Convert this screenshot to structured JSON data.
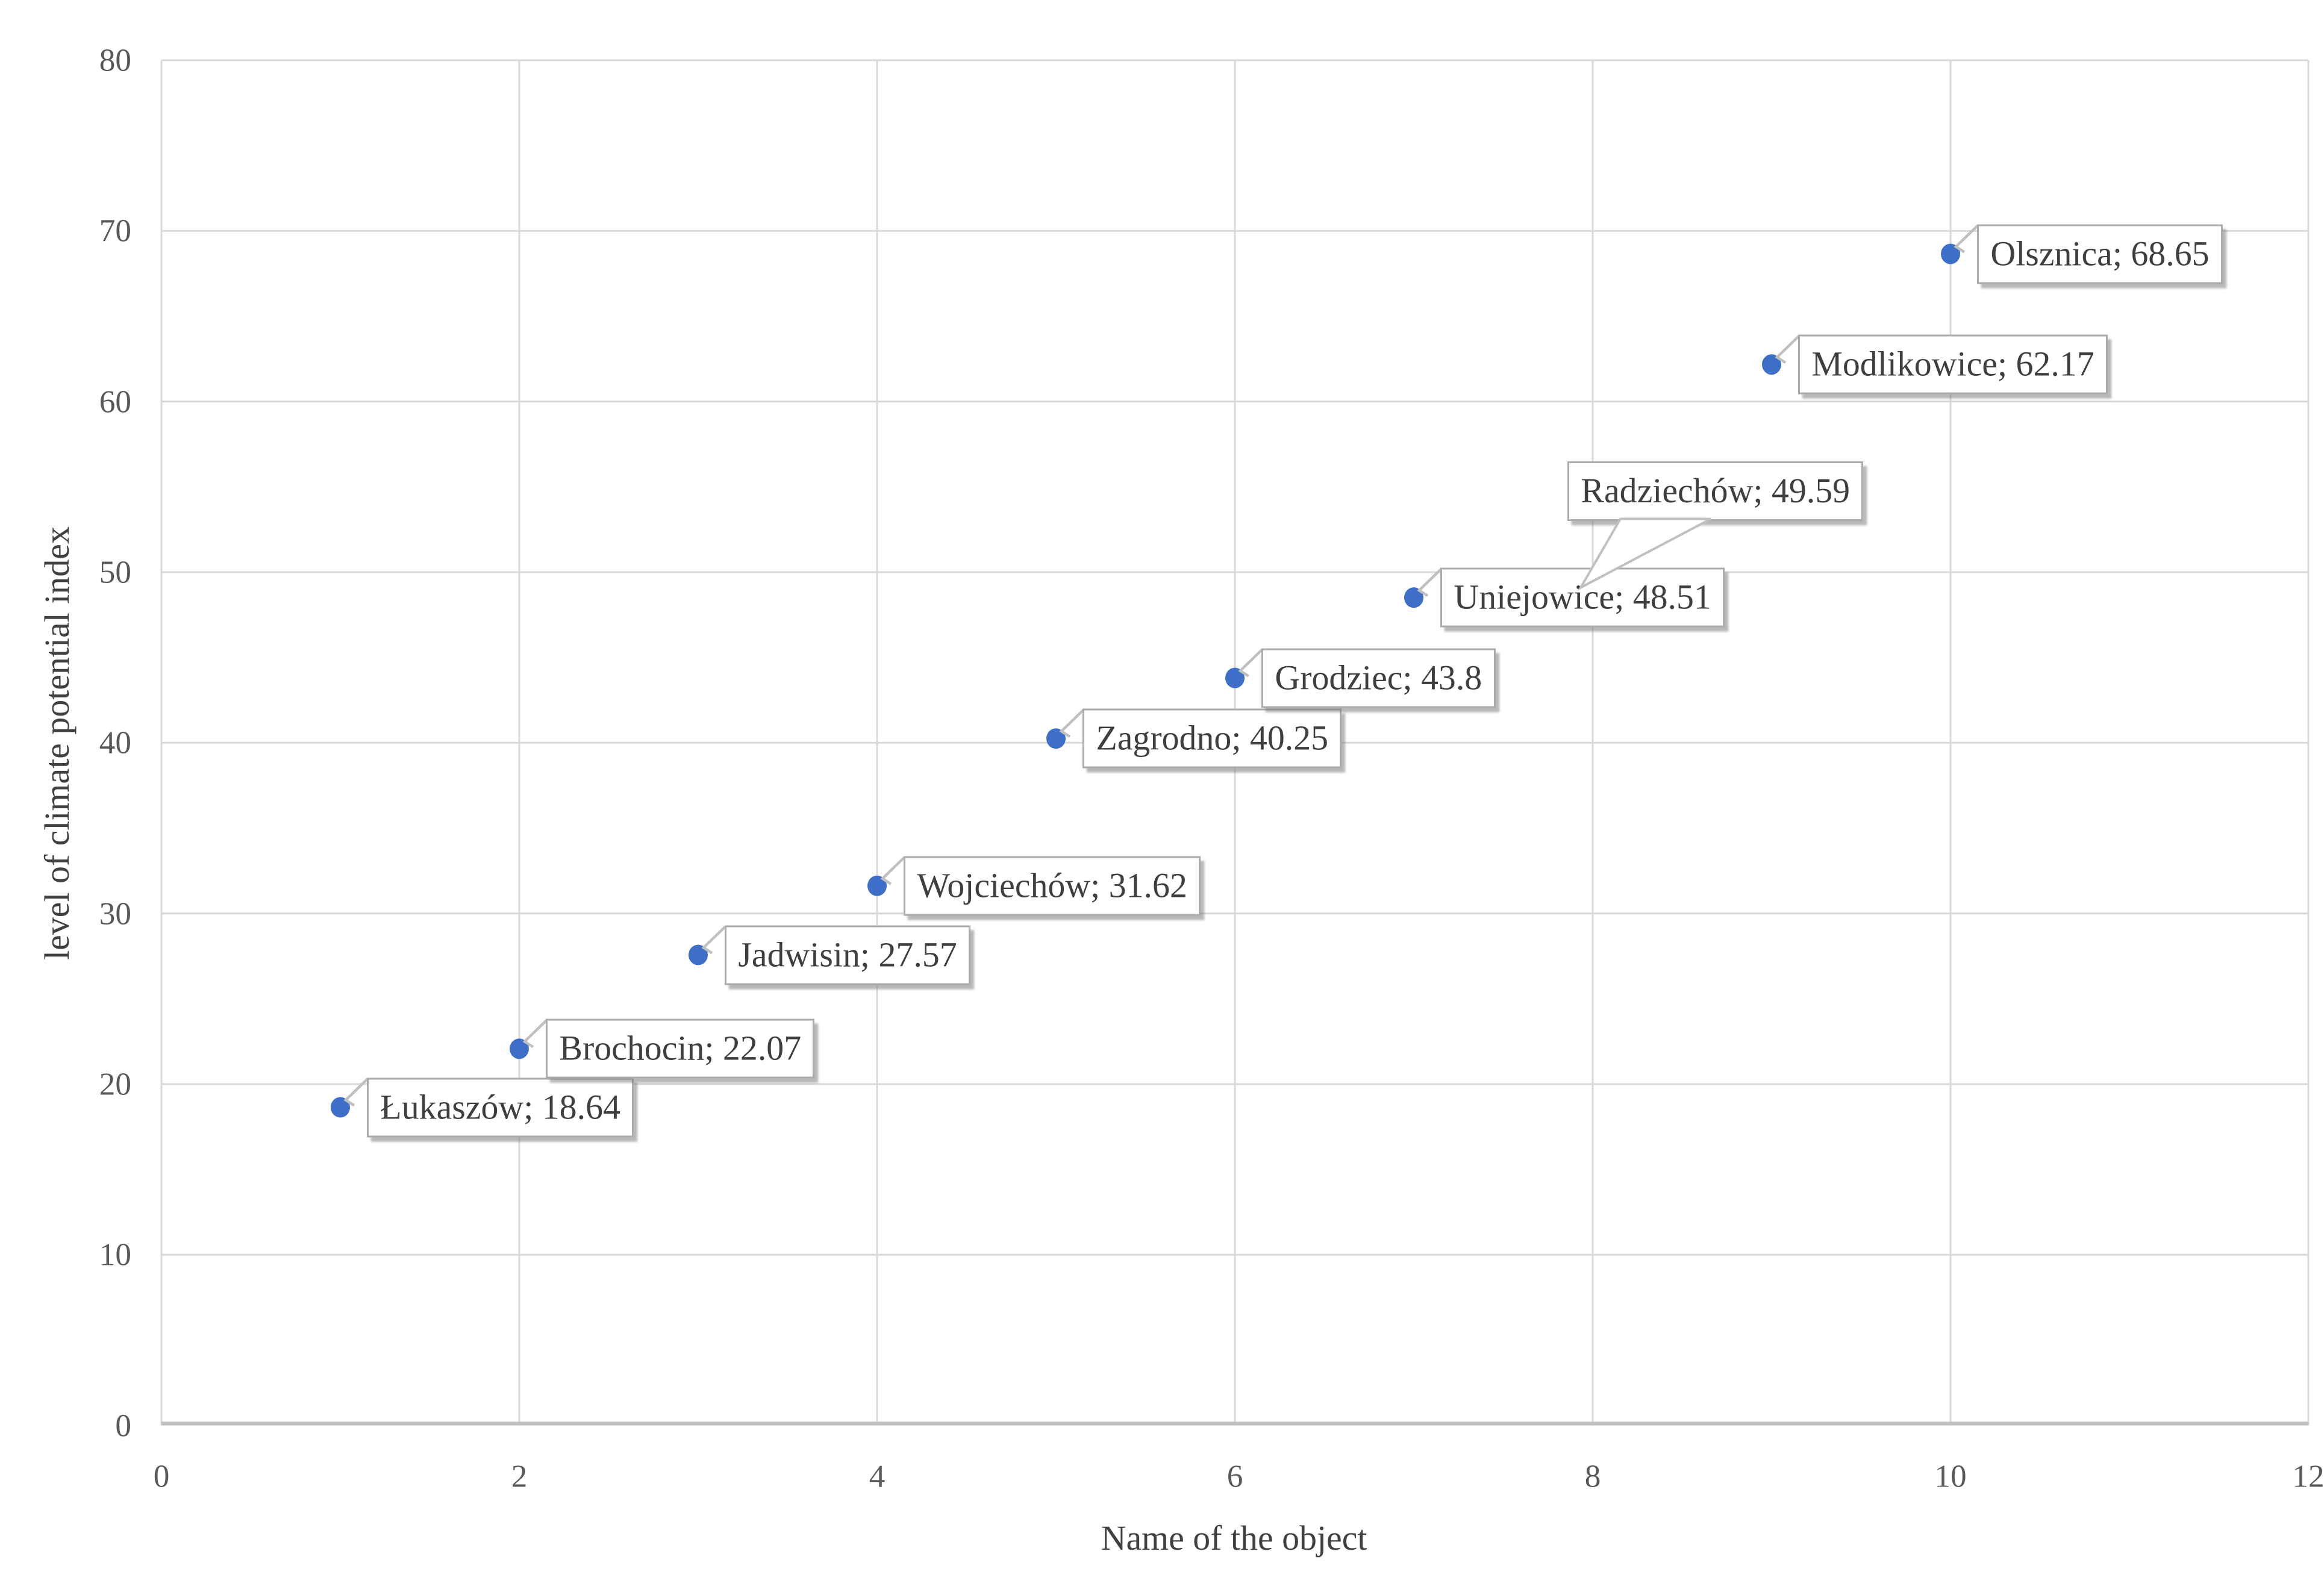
{
  "chart_data": {
    "type": "scatter",
    "title": "",
    "x_axis": {
      "title": "Name of the object",
      "ticks": [
        0,
        2,
        4,
        6,
        8,
        10,
        12
      ],
      "range": [
        0,
        12
      ]
    },
    "y_axis": {
      "title": "level of climate potential index",
      "ticks": [
        0,
        10,
        20,
        30,
        40,
        50,
        60,
        70,
        80
      ],
      "range": [
        0,
        80
      ]
    },
    "grid": true,
    "legend": false,
    "series": [
      {
        "points": [
          {
            "name": "Łukaszów",
            "x": 1,
            "y": 18.64,
            "label": "Łukaszów; 18.64",
            "label_placement": "right"
          },
          {
            "name": "Brochocin",
            "x": 2,
            "y": 22.07,
            "label": "Brochocin; 22.07",
            "label_placement": "right"
          },
          {
            "name": "Jadwisin",
            "x": 3,
            "y": 27.57,
            "label": "Jadwisin; 27.57",
            "label_placement": "right"
          },
          {
            "name": "Wojciechów",
            "x": 4,
            "y": 31.62,
            "label": "Wojciechów; 31.62",
            "label_placement": "right"
          },
          {
            "name": "Zagrodno",
            "x": 5,
            "y": 40.25,
            "label": "Zagrodno; 40.25",
            "label_placement": "right"
          },
          {
            "name": "Grodziec",
            "x": 6,
            "y": 43.8,
            "label": "Grodziec; 43.8",
            "label_placement": "right"
          },
          {
            "name": "Uniejowice",
            "x": 7,
            "y": 48.51,
            "label": "Uniejowice; 48.51",
            "label_placement": "right"
          },
          {
            "name": "Radziechów",
            "x": 8,
            "y": 49.59,
            "label": "Radziechów; 49.59",
            "label_placement": "callout-above"
          },
          {
            "name": "Modlikowice",
            "x": 9,
            "y": 62.17,
            "label": "Modlikowice; 62.17",
            "label_placement": "right"
          },
          {
            "name": "Olsznica",
            "x": 10,
            "y": 68.65,
            "label": "Olsznica; 68.65",
            "label_placement": "right"
          }
        ]
      }
    ],
    "colors": {
      "marker": "#3d6ec8",
      "gridline": "#d9d9d9",
      "axis_line": "#bfbfbf",
      "tick_text": "#595959",
      "title_text": "#404040",
      "label_text": "#3f3f3f",
      "label_border": "#ababab",
      "label_background": "#ffffff",
      "leader_line": "#c0c0c0"
    }
  }
}
